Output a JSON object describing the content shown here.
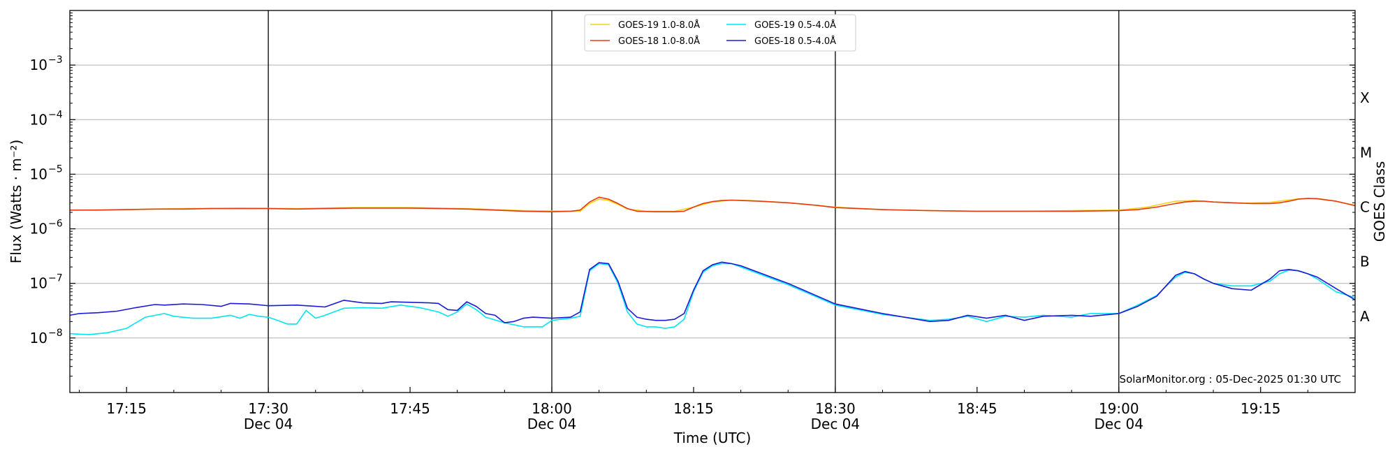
{
  "chart_data": {
    "type": "line",
    "xlabel": "Time (UTC)",
    "ylabel": "Flux (Watts · m⁻²)",
    "y2label": "GOES Class",
    "yscale": "log",
    "ylim": [
      1e-09,
      0.01
    ],
    "xlim": [
      "17:09",
      "19:25"
    ],
    "grid": "horizontal at each decade",
    "legend_position": "top-center",
    "credit": "SolarMonitor.org : 05-Dec-2025 01:30 UTC",
    "y_ticks": [
      {
        "value": 1e-08,
        "label": "10",
        "exp": "−8"
      },
      {
        "value": 1e-07,
        "label": "10",
        "exp": "−7"
      },
      {
        "value": 1e-06,
        "label": "10",
        "exp": "−6"
      },
      {
        "value": 1e-05,
        "label": "10",
        "exp": "−5"
      },
      {
        "value": 0.0001,
        "label": "10",
        "exp": "−4"
      },
      {
        "value": 0.001,
        "label": "10",
        "exp": "−3"
      }
    ],
    "class_labels": [
      {
        "value": 2.5e-08,
        "label": "A"
      },
      {
        "value": 2.5e-07,
        "label": "B"
      },
      {
        "value": 2.5e-06,
        "label": "C"
      },
      {
        "value": 2.5e-05,
        "label": "M"
      },
      {
        "value": 0.00025,
        "label": "X"
      }
    ],
    "x_ticks": [
      {
        "time": "17:15",
        "label": "17:15",
        "date": ""
      },
      {
        "time": "17:30",
        "label": "17:30",
        "date": "Dec 04"
      },
      {
        "time": "17:45",
        "label": "17:45",
        "date": ""
      },
      {
        "time": "18:00",
        "label": "18:00",
        "date": "Dec 04"
      },
      {
        "time": "18:15",
        "label": "18:15",
        "date": ""
      },
      {
        "time": "18:30",
        "label": "18:30",
        "date": "Dec 04"
      },
      {
        "time": "18:45",
        "label": "18:45",
        "date": ""
      },
      {
        "time": "19:00",
        "label": "19:00",
        "date": "Dec 04"
      },
      {
        "time": "19:15",
        "label": "19:15",
        "date": ""
      }
    ],
    "vlines": [
      "17:30",
      "18:00",
      "18:30",
      "19:00"
    ],
    "series": [
      {
        "name": "GOES-19 1.0-8.0Å",
        "color": "#f2d21a",
        "x": [
          "17:09",
          "17:15",
          "17:21",
          "17:27",
          "17:33",
          "17:39",
          "17:45",
          "17:51",
          "17:57",
          "18:03",
          "18:04",
          "18:05",
          "18:06",
          "18:07",
          "18:08",
          "18:10",
          "18:13",
          "18:15",
          "18:17",
          "18:19",
          "18:21",
          "18:25",
          "18:30",
          "18:35",
          "18:40",
          "18:45",
          "18:50",
          "18:55",
          "19:00",
          "19:03",
          "19:06",
          "19:08",
          "19:10",
          "19:13",
          "19:16",
          "19:19",
          "19:21",
          "19:23",
          "19:25"
        ],
        "values": [
          2.2e-06,
          2.25e-06,
          2.35e-06,
          2.4e-06,
          2.35e-06,
          2.45e-06,
          2.45e-06,
          2.35e-06,
          2.15e-06,
          2.1e-06,
          2.9e-06,
          3.5e-06,
          3.3e-06,
          2.8e-06,
          2.3e-06,
          2.1e-06,
          2.1e-06,
          2.5e-06,
          3.1e-06,
          3.35e-06,
          3.3e-06,
          3e-06,
          2.5e-06,
          2.25e-06,
          2.15e-06,
          2.1e-06,
          2.1e-06,
          2.15e-06,
          2.2e-06,
          2.5e-06,
          3.2e-06,
          3.3e-06,
          3.1e-06,
          2.95e-06,
          3.05e-06,
          3.55e-06,
          3.6e-06,
          3.2e-06,
          2.7e-06
        ]
      },
      {
        "name": "GOES-18 1.0-8.0Å",
        "color": "#e8380d",
        "x": [
          "17:09",
          "17:12",
          "17:15",
          "17:18",
          "17:21",
          "17:24",
          "17:27",
          "17:30",
          "17:33",
          "17:36",
          "17:39",
          "17:42",
          "17:45",
          "17:48",
          "17:51",
          "17:54",
          "17:57",
          "18:00",
          "18:02",
          "18:03",
          "18:04",
          "18:05",
          "18:06",
          "18:07",
          "18:08",
          "18:09",
          "18:11",
          "18:13",
          "18:14",
          "18:15",
          "18:16",
          "18:17",
          "18:18",
          "18:19",
          "18:20",
          "18:22",
          "18:25",
          "18:28",
          "18:30",
          "18:35",
          "18:40",
          "18:45",
          "18:50",
          "18:55",
          "19:00",
          "19:02",
          "19:04",
          "19:06",
          "19:07",
          "19:08",
          "19:09",
          "19:10",
          "19:12",
          "19:14",
          "19:16",
          "19:17",
          "19:18",
          "19:19",
          "19:20",
          "19:21",
          "19:23",
          "19:25"
        ],
        "values": [
          2.2e-06,
          2.2e-06,
          2.25e-06,
          2.3e-06,
          2.3e-06,
          2.35e-06,
          2.35e-06,
          2.35e-06,
          2.3e-06,
          2.35e-06,
          2.4e-06,
          2.4e-06,
          2.4e-06,
          2.35e-06,
          2.3e-06,
          2.2e-06,
          2.1e-06,
          2.05e-06,
          2.1e-06,
          2.2e-06,
          3.1e-06,
          3.8e-06,
          3.5e-06,
          2.9e-06,
          2.35e-06,
          2.1e-06,
          2.05e-06,
          2.05e-06,
          2.1e-06,
          2.5e-06,
          2.9e-06,
          3.15e-06,
          3.3e-06,
          3.35e-06,
          3.3e-06,
          3.2e-06,
          3e-06,
          2.7e-06,
          2.45e-06,
          2.25e-06,
          2.15e-06,
          2.1e-06,
          2.1e-06,
          2.1e-06,
          2.15e-06,
          2.25e-06,
          2.5e-06,
          2.9e-06,
          3.1e-06,
          3.2e-06,
          3.2e-06,
          3.1e-06,
          3e-06,
          2.9e-06,
          2.9e-06,
          3e-06,
          3.2e-06,
          3.5e-06,
          3.6e-06,
          3.55e-06,
          3.2e-06,
          2.65e-06
        ]
      },
      {
        "name": "GOES-19 0.5-4.0Å",
        "color": "#00e5f0",
        "x": [
          "17:09",
          "17:11",
          "17:13",
          "17:15",
          "17:17",
          "17:19",
          "17:20",
          "17:22",
          "17:24",
          "17:26",
          "17:27",
          "17:28",
          "17:29",
          "17:30",
          "17:31",
          "17:32",
          "17:33",
          "17:34",
          "17:35",
          "17:36",
          "17:38",
          "17:40",
          "17:42",
          "17:44",
          "17:46",
          "17:48",
          "17:49",
          "17:50",
          "17:51",
          "17:52",
          "17:53",
          "17:55",
          "17:57",
          "17:59",
          "18:00",
          "18:02",
          "18:03",
          "18:04",
          "18:05",
          "18:06",
          "18:07",
          "18:08",
          "18:09",
          "18:10",
          "18:11",
          "18:12",
          "18:13",
          "18:14",
          "18:15",
          "18:16",
          "18:17",
          "18:18",
          "18:19",
          "18:20",
          "18:25",
          "18:30",
          "18:35",
          "18:40",
          "18:42",
          "18:44",
          "18:46",
          "18:48",
          "18:50",
          "18:52",
          "18:55",
          "18:57",
          "19:00",
          "19:02",
          "19:04",
          "19:06",
          "19:07",
          "19:08",
          "19:09",
          "19:10",
          "19:12",
          "19:14",
          "19:16",
          "19:17",
          "19:18",
          "19:19",
          "19:20",
          "19:21",
          "19:23",
          "19:25"
        ],
        "values": [
          1.2e-08,
          1.15e-08,
          1.25e-08,
          1.5e-08,
          2.4e-08,
          2.8e-08,
          2.5e-08,
          2.3e-08,
          2.3e-08,
          2.6e-08,
          2.3e-08,
          2.7e-08,
          2.5e-08,
          2.4e-08,
          2.1e-08,
          1.8e-08,
          1.8e-08,
          3.2e-08,
          2.3e-08,
          2.6e-08,
          3.5e-08,
          3.6e-08,
          3.5e-08,
          4e-08,
          3.6e-08,
          3e-08,
          2.5e-08,
          3e-08,
          4.2e-08,
          3.3e-08,
          2.4e-08,
          1.9e-08,
          1.6e-08,
          1.6e-08,
          2.1e-08,
          2.3e-08,
          2.5e-08,
          1.7e-07,
          2.3e-07,
          2.2e-07,
          1e-07,
          3e-08,
          1.8e-08,
          1.6e-08,
          1.6e-08,
          1.5e-08,
          1.6e-08,
          2.2e-08,
          7e-08,
          1.6e-07,
          2.1e-07,
          2.3e-07,
          2.3e-07,
          2e-07,
          9.5e-08,
          4e-08,
          2.7e-08,
          2.1e-08,
          2.2e-08,
          2.5e-08,
          2e-08,
          2.5e-08,
          2.4e-08,
          2.6e-08,
          2.4e-08,
          2.8e-08,
          2.8e-08,
          4e-08,
          6e-08,
          1.3e-07,
          1.6e-07,
          1.5e-07,
          1.2e-07,
          1e-07,
          9e-08,
          9e-08,
          1.1e-07,
          1.5e-07,
          1.75e-07,
          1.7e-07,
          1.5e-07,
          1.2e-07,
          7e-08,
          5.5e-08
        ]
      },
      {
        "name": "GOES-18 0.5-4.0Å",
        "color": "#1a1ad6",
        "x": [
          "17:09",
          "17:10",
          "17:12",
          "17:14",
          "17:16",
          "17:18",
          "17:19",
          "17:21",
          "17:23",
          "17:25",
          "17:26",
          "17:28",
          "17:30",
          "17:33",
          "17:35",
          "17:36",
          "17:38",
          "17:40",
          "17:42",
          "17:43",
          "17:45",
          "17:47",
          "17:48",
          "17:49",
          "17:50",
          "17:51",
          "17:52",
          "17:53",
          "17:54",
          "17:55",
          "17:56",
          "17:57",
          "17:58",
          "18:00",
          "18:02",
          "18:03",
          "18:04",
          "18:05",
          "18:06",
          "18:07",
          "18:08",
          "18:09",
          "18:10",
          "18:11",
          "18:12",
          "18:13",
          "18:14",
          "18:15",
          "18:16",
          "18:17",
          "18:18",
          "18:19",
          "18:20",
          "18:25",
          "18:30",
          "18:35",
          "18:40",
          "18:42",
          "18:44",
          "18:46",
          "18:48",
          "18:50",
          "18:52",
          "18:55",
          "18:57",
          "19:00",
          "19:02",
          "19:04",
          "19:06",
          "19:07",
          "19:08",
          "19:09",
          "19:10",
          "19:12",
          "19:14",
          "19:16",
          "19:17",
          "19:18",
          "19:19",
          "19:20",
          "19:21",
          "19:23",
          "19:25"
        ],
        "values": [
          2.6e-08,
          2.8e-08,
          2.9e-08,
          3.1e-08,
          3.6e-08,
          4.1e-08,
          4e-08,
          4.2e-08,
          4.1e-08,
          3.8e-08,
          4.3e-08,
          4.2e-08,
          3.9e-08,
          4e-08,
          3.8e-08,
          3.7e-08,
          4.9e-08,
          4.4e-08,
          4.3e-08,
          4.6e-08,
          4.5e-08,
          4.4e-08,
          4.3e-08,
          3.3e-08,
          3.2e-08,
          4.6e-08,
          3.8e-08,
          2.8e-08,
          2.6e-08,
          1.9e-08,
          2e-08,
          2.3e-08,
          2.4e-08,
          2.3e-08,
          2.4e-08,
          3e-08,
          1.8e-07,
          2.4e-07,
          2.3e-07,
          1.1e-07,
          3.5e-08,
          2.4e-08,
          2.2e-08,
          2.1e-08,
          2.1e-08,
          2.2e-08,
          2.8e-08,
          7.5e-08,
          1.7e-07,
          2.2e-07,
          2.45e-07,
          2.3e-07,
          2.1e-07,
          1e-07,
          4.2e-08,
          2.8e-08,
          2e-08,
          2.1e-08,
          2.6e-08,
          2.3e-08,
          2.6e-08,
          2.1e-08,
          2.5e-08,
          2.6e-08,
          2.5e-08,
          2.8e-08,
          3.8e-08,
          5.8e-08,
          1.4e-07,
          1.65e-07,
          1.5e-07,
          1.2e-07,
          1e-07,
          8e-08,
          7.5e-08,
          1.2e-07,
          1.7e-07,
          1.8e-07,
          1.7e-07,
          1.5e-07,
          1.3e-07,
          8e-08,
          5e-08
        ]
      }
    ]
  }
}
